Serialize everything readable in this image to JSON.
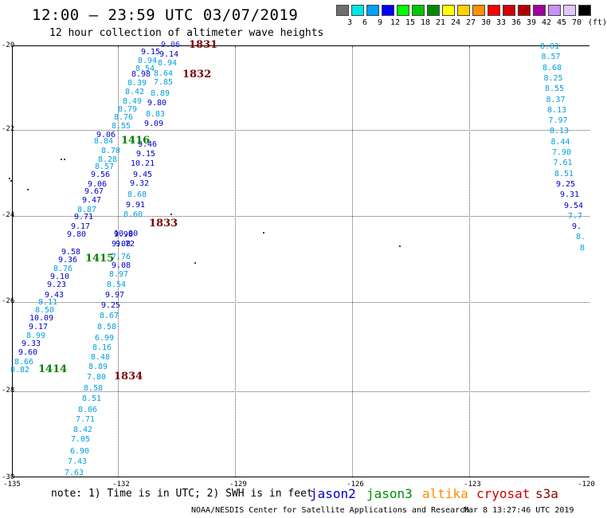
{
  "header": {
    "title": "12:00 — 23:59 UTC 03/07/2019",
    "subtitle": "12 hour collection of altimeter wave heights"
  },
  "colorbar": {
    "unit_label": "(ft)",
    "bins": [
      {
        "color": "#6e6e6e",
        "label": "3"
      },
      {
        "color": "#00e6e6",
        "label": "6"
      },
      {
        "color": "#00a0ff",
        "label": "9"
      },
      {
        "color": "#0000ff",
        "label": "12"
      },
      {
        "color": "#00ff00",
        "label": "15"
      },
      {
        "color": "#00c800",
        "label": "18"
      },
      {
        "color": "#008c00",
        "label": "21"
      },
      {
        "color": "#ffff00",
        "label": "24"
      },
      {
        "color": "#ffd200",
        "label": "27"
      },
      {
        "color": "#ff9000",
        "label": "30"
      },
      {
        "color": "#ff0000",
        "label": "33"
      },
      {
        "color": "#d20000",
        "label": "36"
      },
      {
        "color": "#b40000",
        "label": "39"
      },
      {
        "color": "#a000a0",
        "label": "42"
      },
      {
        "color": "#c890ff",
        "label": "45"
      },
      {
        "color": "#e0c8ff",
        "label": "70"
      },
      {
        "color": "#000000",
        "label": ""
      }
    ]
  },
  "map": {
    "lat_labels": [
      "-20",
      "-22",
      "-24",
      "-26",
      "-28",
      "-30"
    ],
    "lon_labels": [
      "-135",
      "-132",
      "-129",
      "-126",
      "-123",
      "-120"
    ]
  },
  "tracks": [
    {
      "satellite": "cryosat",
      "times": [
        "1831",
        "1832",
        "1833",
        "1834"
      ],
      "obs": [
        [
          "9.06",
          "blue"
        ],
        [
          "9.15",
          "dark"
        ],
        [
          "9.14",
          "dark"
        ],
        [
          "8.94",
          "light"
        ],
        [
          "8.94",
          "light"
        ],
        [
          "8.54",
          "light"
        ],
        [
          "8.98",
          "dark"
        ],
        [
          "8.64",
          "light"
        ],
        [
          "8.39",
          "light"
        ],
        [
          "7.85",
          "light"
        ],
        [
          "8.42",
          "light"
        ],
        [
          "8.89",
          "light"
        ],
        [
          "8.49",
          "light"
        ],
        [
          "9.80",
          "dark"
        ],
        [
          "8.79",
          "light"
        ],
        [
          "8.83",
          "light"
        ],
        [
          "8.76",
          "light"
        ],
        [
          "9.09",
          "dark"
        ],
        [
          "8.55",
          "light"
        ],
        [
          "9.06",
          "dark"
        ],
        [
          "8.84",
          "light"
        ],
        [
          "9.46",
          "dark"
        ],
        [
          "8.78",
          "light"
        ],
        [
          "9.15",
          "dark"
        ],
        [
          "8.28",
          "light"
        ],
        [
          "10.21",
          "dark"
        ],
        [
          "8.57",
          "light"
        ],
        [
          "9.45",
          "dark"
        ],
        [
          "9.56",
          "dark"
        ],
        [
          "9.32",
          "dark"
        ],
        [
          "9.06",
          "dark"
        ],
        [
          "8.68",
          "light"
        ],
        [
          "9.67",
          "dark"
        ],
        [
          "9.91",
          "dark"
        ],
        [
          "9.47",
          "dark"
        ],
        [
          "8.87",
          "light"
        ],
        [
          "8.60",
          "light"
        ],
        [
          "9.71",
          "dark"
        ],
        [
          "9.17",
          "dark"
        ],
        [
          "9.80",
          "dark"
        ],
        [
          "9.98",
          "dark"
        ],
        [
          "10.00",
          "dark"
        ],
        [
          "9.08",
          "dark"
        ],
        [
          "9.72",
          "dark"
        ],
        [
          "9.58",
          "dark"
        ],
        [
          "7.76",
          "light"
        ],
        [
          "9.36",
          "dark"
        ],
        [
          "9.08",
          "dark"
        ],
        [
          "8.76",
          "light"
        ],
        [
          "8.97",
          "light"
        ],
        [
          "9.10",
          "dark"
        ],
        [
          "8.54",
          "light"
        ],
        [
          "9.23",
          "dark"
        ],
        [
          "9.43",
          "dark"
        ],
        [
          "9.97",
          "dark"
        ],
        [
          "8.11",
          "light"
        ],
        [
          "9.25",
          "dark"
        ],
        [
          "8.50",
          "light"
        ],
        [
          "8.67",
          "light"
        ],
        [
          "10.09",
          "dark"
        ],
        [
          "8.58",
          "light"
        ],
        [
          "9.17",
          "dark"
        ],
        [
          "8.99",
          "light"
        ],
        [
          "6.99",
          "light"
        ],
        [
          "9.33",
          "dark"
        ],
        [
          "8.16",
          "light"
        ],
        [
          "9.60",
          "dark"
        ],
        [
          "8.48",
          "light"
        ],
        [
          "8.66",
          "light"
        ],
        [
          "8.89",
          "light"
        ],
        [
          "8.82",
          "light"
        ],
        [
          "7.80",
          "light"
        ],
        [
          "8.58",
          "light"
        ],
        [
          "8.51",
          "light"
        ],
        [
          "8.06",
          "light"
        ],
        [
          "7.71",
          "light"
        ],
        [
          "8.42",
          "light"
        ],
        [
          "7.05",
          "light"
        ],
        [
          "6.90",
          "light"
        ],
        [
          "7.43",
          "light"
        ],
        [
          "7.63",
          "light"
        ]
      ]
    },
    {
      "satellite": "jason3",
      "times": [
        "1414",
        "1415",
        "1416"
      ],
      "obs": []
    },
    {
      "satellite": "east-track",
      "times": [],
      "obs": [
        [
          "8.01",
          "light"
        ],
        [
          "8.57",
          "light"
        ],
        [
          "8.68",
          "light"
        ],
        [
          "8.25",
          "light"
        ],
        [
          "8.55",
          "light"
        ],
        [
          "8.37",
          "light"
        ],
        [
          "8.13",
          "light"
        ],
        [
          "7.97",
          "light"
        ],
        [
          "8.13",
          "light"
        ],
        [
          "8.44",
          "light"
        ],
        [
          "7.90",
          "light"
        ],
        [
          "7.61",
          "light"
        ],
        [
          "8.51",
          "light"
        ],
        [
          "9.25",
          "dark"
        ],
        [
          "9.31",
          "dark"
        ],
        [
          "9.54",
          "dark"
        ],
        [
          "7.7",
          "light"
        ],
        [
          "9.",
          "dark"
        ],
        [
          "8.",
          "light"
        ],
        [
          "8",
          "light"
        ]
      ]
    }
  ],
  "footer": {
    "note": "note: 1) Time is in UTC; 2) SWH is in feet",
    "satellites": [
      {
        "name": "jason2",
        "color": "#0000cc"
      },
      {
        "name": "jason3",
        "color": "#008c00"
      },
      {
        "name": "altika",
        "color": "#ff8c00"
      },
      {
        "name": "cryosat",
        "color": "#cc0000"
      },
      {
        "name": "s3a",
        "color": "#8b0000"
      }
    ],
    "credit": "NOAA/NESDIS Center for Satellite Applications and Research",
    "timestamp": "Mar  8 13:27:46 UTC 2019"
  }
}
